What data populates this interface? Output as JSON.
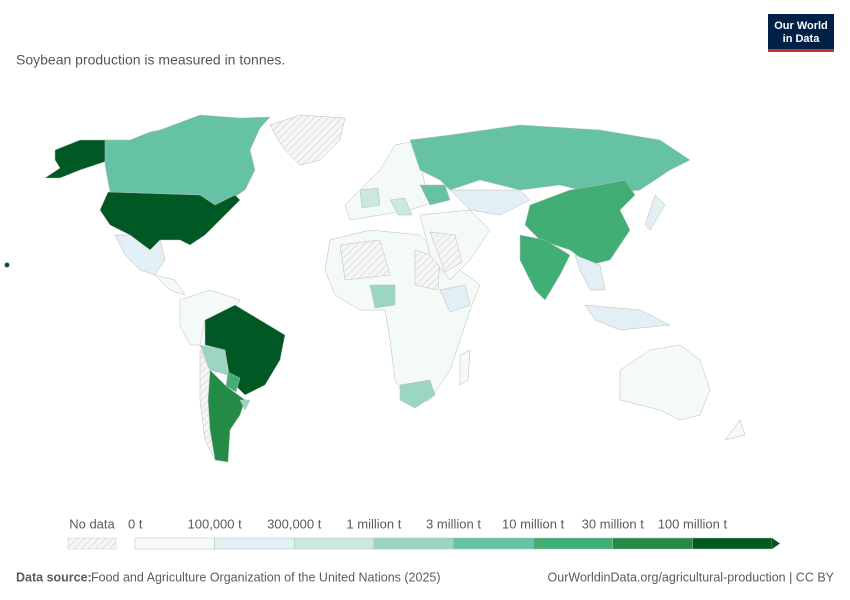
{
  "logo": {
    "line1": "Our World",
    "line2": "in Data"
  },
  "subtitle": "Soybean production is measured in tonnes.",
  "legend": {
    "no_data": "No data",
    "bins": [
      {
        "label": "0 t",
        "color": "#f4faf8"
      },
      {
        "label": "100,000 t",
        "color": "#e2eff4"
      },
      {
        "label": "300,000 t",
        "color": "#c9e8df"
      },
      {
        "label": "1 million t",
        "color": "#9ad6c2"
      },
      {
        "label": "3 million t",
        "color": "#66c2a4"
      },
      {
        "label": "10 million t",
        "color": "#41ae76"
      },
      {
        "label": "30 million t",
        "color": "#238b45"
      },
      {
        "label": "100 million t",
        "color": "#005824"
      }
    ]
  },
  "footer": {
    "source_label": "Data source:",
    "source": "Food and Agriculture Organization of the United Nations (2025)",
    "url": "OurWorldinData.org/agricultural-production | CC BY"
  }
}
